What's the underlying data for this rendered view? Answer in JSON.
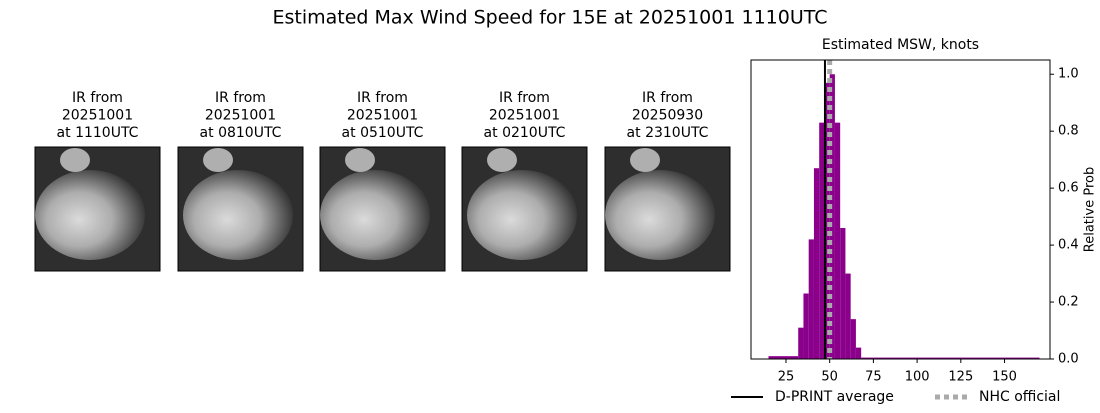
{
  "title": "Estimated Max Wind Speed for 15E at 20251001 1110UTC",
  "images": [
    {
      "caption": [
        "IR from",
        "20251001",
        "at 1110UTC"
      ]
    },
    {
      "caption": [
        "IR from",
        "20251001",
        "at 0810UTC"
      ]
    },
    {
      "caption": [
        "IR from",
        "20251001",
        "at 0510UTC"
      ]
    },
    {
      "caption": [
        "IR from",
        "20251001",
        "at 0210UTC"
      ]
    },
    {
      "caption": [
        "IR from",
        "20250930",
        "at 2310UTC"
      ]
    }
  ],
  "chart_data": {
    "type": "histogram",
    "title": "Estimated MSW, knots",
    "y_label": "Relative Prob",
    "y_axis_side": "right",
    "bins": [
      15,
      32,
      35,
      38,
      41,
      44,
      47,
      50,
      53,
      56,
      59,
      62,
      65,
      68,
      170
    ],
    "values": [
      0.01,
      0.11,
      0.23,
      0.42,
      0.67,
      0.83,
      0.97,
      1.0,
      0.83,
      0.46,
      0.3,
      0.14,
      0.04,
      0.005
    ],
    "color": "#8b008b",
    "xlim": [
      5,
      176
    ],
    "xticks": [
      25,
      50,
      75,
      100,
      125,
      150
    ],
    "ylim": [
      0,
      1.05
    ],
    "yticks": [
      {
        "value": 0,
        "label": "0.0"
      },
      0.2,
      0.4,
      0.6,
      0.8,
      {
        "value": 1,
        "label": "1.0"
      }
    ],
    "lines": [
      {
        "name": "D-PRINT average",
        "value": 47.3,
        "color": "#000000",
        "style": "solid"
      },
      {
        "name": "NHC official",
        "value": 50,
        "color": "#aaaaaa",
        "style": "dotted"
      }
    ]
  }
}
